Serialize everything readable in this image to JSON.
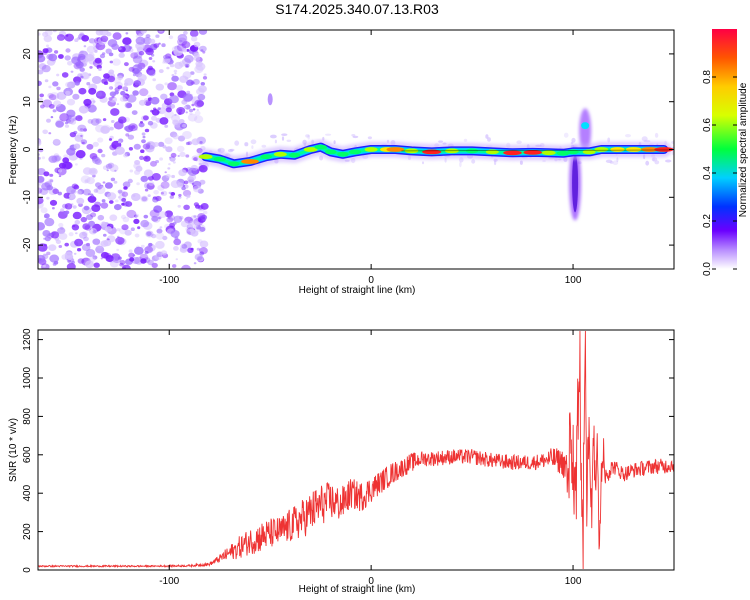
{
  "title": "S174.2025.340.07.13.R03",
  "colors": {
    "snr_line": "#ee3333",
    "speckle": "#7a1fff",
    "ridge_core": "#ff2020",
    "frame": "#000000"
  },
  "chart_data": [
    {
      "type": "heatmap",
      "name": "spectrogram",
      "title": "S174.2025.340.07.13.R03",
      "xlabel": "Height of straight line (km)",
      "ylabel": "Frequency (Hz)",
      "xlim": [
        -165,
        150
      ],
      "ylim": [
        -25,
        25
      ],
      "xticks": [
        -100,
        0,
        100
      ],
      "yticks": [
        -20,
        -10,
        0,
        10,
        20
      ],
      "grid": false,
      "noise_region_x": [
        -165,
        -82
      ],
      "ridge": [
        {
          "x": -82,
          "f": -1.5,
          "a": 0.55
        },
        {
          "x": -75,
          "f": -2.0,
          "a": 0.45
        },
        {
          "x": -68,
          "f": -3.0,
          "a": 0.4
        },
        {
          "x": -60,
          "f": -2.5,
          "a": 0.85
        },
        {
          "x": -52,
          "f": -1.5,
          "a": 0.4
        },
        {
          "x": -45,
          "f": -1.0,
          "a": 0.5
        },
        {
          "x": -38,
          "f": -1.2,
          "a": 0.4
        },
        {
          "x": -30,
          "f": 0.0,
          "a": 0.55
        },
        {
          "x": -25,
          "f": 0.5,
          "a": 0.45
        },
        {
          "x": -20,
          "f": -0.5,
          "a": 0.4
        },
        {
          "x": -14,
          "f": -1.0,
          "a": 0.4
        },
        {
          "x": -8,
          "f": -0.5,
          "a": 0.45
        },
        {
          "x": 0,
          "f": 0.0,
          "a": 0.5
        },
        {
          "x": 8,
          "f": 0.0,
          "a": 0.6
        },
        {
          "x": 12,
          "f": 0.0,
          "a": 0.85
        },
        {
          "x": 20,
          "f": -0.3,
          "a": 0.55
        },
        {
          "x": 30,
          "f": -0.5,
          "a": 0.95
        },
        {
          "x": 40,
          "f": -0.3,
          "a": 0.55
        },
        {
          "x": 50,
          "f": -0.3,
          "a": 0.45
        },
        {
          "x": 60,
          "f": -0.5,
          "a": 0.5
        },
        {
          "x": 70,
          "f": -0.7,
          "a": 0.9
        },
        {
          "x": 80,
          "f": -0.6,
          "a": 0.9
        },
        {
          "x": 88,
          "f": -0.7,
          "a": 0.55
        },
        {
          "x": 95,
          "f": -0.8,
          "a": 0.45
        },
        {
          "x": 100,
          "f": -0.5,
          "a": 0.4
        },
        {
          "x": 108,
          "f": -0.5,
          "a": 0.5
        },
        {
          "x": 114,
          "f": 0.0,
          "a": 0.55
        },
        {
          "x": 122,
          "f": 0.0,
          "a": 0.6
        },
        {
          "x": 130,
          "f": 0.0,
          "a": 0.7
        },
        {
          "x": 138,
          "f": 0.0,
          "a": 0.8
        },
        {
          "x": 145,
          "f": 0.0,
          "a": 0.95
        }
      ],
      "feature_isolated_blob": {
        "x": -50,
        "f": 10.5
      },
      "feature_plume_down": {
        "x": 101,
        "f_from": 0,
        "f_to": -14
      },
      "feature_plume_up": {
        "x": 106,
        "f_from": 0,
        "f_to": 8
      }
    },
    {
      "type": "colorbar",
      "name": "amplitude-colorbar",
      "label": "Normalized spectral amplitude",
      "range": [
        0.0,
        1.0
      ],
      "ticks": [
        "0.0",
        "0.2",
        "0.4",
        "0.6",
        "0.8"
      ],
      "tick_values": [
        0.0,
        0.2,
        0.4,
        0.6,
        0.8
      ]
    },
    {
      "type": "line",
      "name": "snr-plot",
      "xlabel": "Height of straight line (km)",
      "ylabel": "SNR (10 * v/v)",
      "xlim": [
        -165,
        150
      ],
      "ylim": [
        0,
        1250
      ],
      "xticks": [
        -100,
        0,
        100
      ],
      "yticks": [
        0,
        200,
        400,
        600,
        800,
        1000,
        1200
      ],
      "grid": false,
      "series": [
        {
          "name": "SNR",
          "x": [
            -165,
            -150,
            -130,
            -110,
            -90,
            -80,
            -75,
            -70,
            -65,
            -60,
            -55,
            -50,
            -45,
            -40,
            -35,
            -30,
            -25,
            -20,
            -15,
            -10,
            -5,
            0,
            5,
            10,
            15,
            20,
            25,
            30,
            40,
            50,
            60,
            70,
            80,
            85,
            90,
            95,
            97,
            99,
            101,
            103,
            104,
            105,
            106,
            107,
            108,
            109,
            110,
            111,
            112,
            113,
            114,
            116,
            120,
            125,
            130,
            135,
            140,
            145,
            150
          ],
          "values": [
            20,
            20,
            20,
            20,
            22,
            30,
            60,
            90,
            120,
            150,
            170,
            190,
            200,
            230,
            260,
            300,
            340,
            360,
            340,
            400,
            380,
            420,
            460,
            500,
            530,
            560,
            580,
            580,
            590,
            590,
            570,
            560,
            560,
            570,
            580,
            560,
            500,
            640,
            420,
            900,
            760,
            150,
            1230,
            60,
            950,
            30,
            900,
            380,
            820,
            40,
            640,
            500,
            540,
            500,
            520,
            530,
            540,
            540,
            550
          ],
          "noise": [
            4,
            4,
            4,
            4,
            5,
            8,
            20,
            40,
            60,
            70,
            80,
            80,
            80,
            90,
            100,
            110,
            110,
            100,
            90,
            80,
            80,
            70,
            60,
            60,
            50,
            50,
            40,
            40,
            40,
            40,
            40,
            40,
            40,
            40,
            60,
            70,
            150,
            200,
            250,
            300,
            300,
            300,
            300,
            300,
            300,
            300,
            300,
            200,
            200,
            200,
            150,
            60,
            40,
            40,
            40,
            40,
            40,
            40,
            40
          ]
        }
      ]
    }
  ]
}
